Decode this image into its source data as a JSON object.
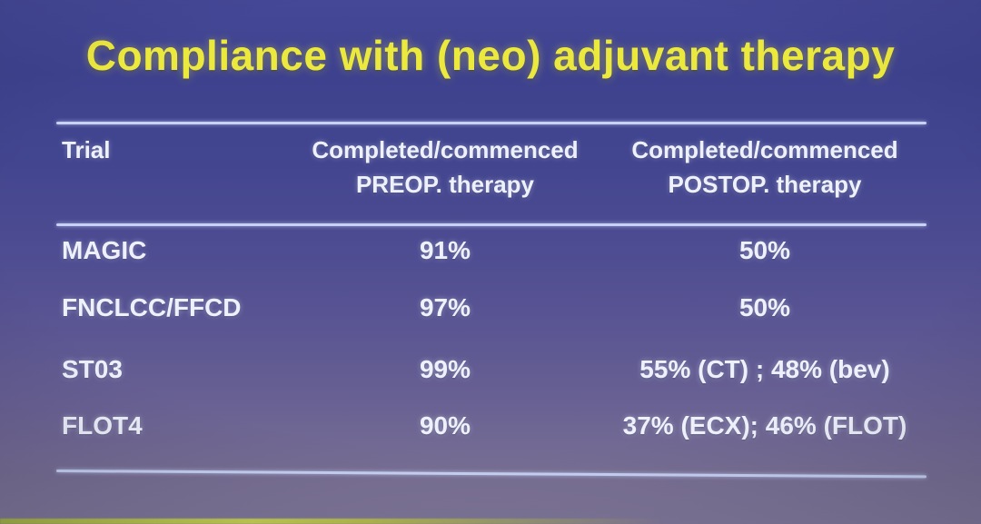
{
  "slide": {
    "title": "Compliance with (neo) adjuvant therapy"
  },
  "table": {
    "headers": {
      "trial": "Trial",
      "preop": {
        "line1": "Completed/commenced",
        "line2": "PREOP. therapy"
      },
      "postop": {
        "line1": "Completed/commenced",
        "line2": "POSTOP. therapy"
      }
    },
    "rows": [
      {
        "trial": "MAGIC",
        "preop": "91%",
        "postop": "50%"
      },
      {
        "trial": "FNCLCC/FFCD",
        "preop": "97%",
        "postop": "50%"
      },
      {
        "trial": "ST03",
        "preop": "99%",
        "postop": "55% (CT) ; 48% (bev)"
      },
      {
        "trial": "FLOT4",
        "preop": "90%",
        "postop": "37% (ECX); 46% (FLOT)"
      }
    ]
  },
  "colors": {
    "background_top": "#454897",
    "background_bottom": "#837a9a",
    "title": "#ece93e",
    "text": "#eef1fb",
    "rule": "#c7d2f4",
    "bottom_strip": "#b7c14f"
  }
}
